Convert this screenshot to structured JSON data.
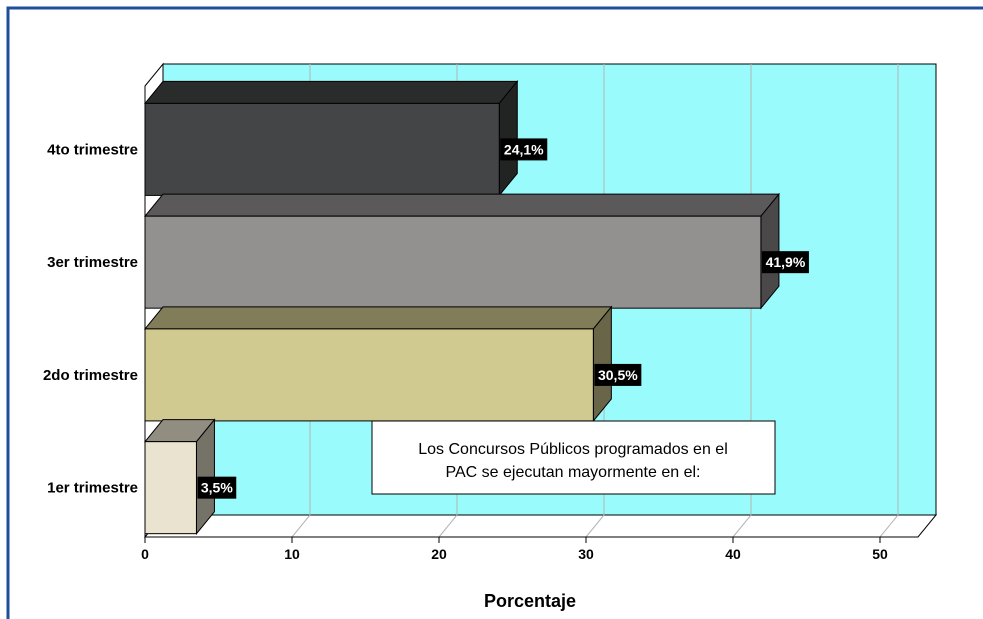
{
  "chart_data": {
    "type": "bar",
    "orientation": "horizontal",
    "categories": [
      "1er trimestre",
      "2do trimestre",
      "3er trimestre",
      "4to trimestre"
    ],
    "values": [
      3.5,
      30.5,
      41.9,
      24.1
    ],
    "value_labels": [
      "3,5%",
      "30,5%",
      "41,9%",
      "24,1%"
    ],
    "title": "",
    "xlabel": "Porcentaje",
    "ylabel": "",
    "xlim": [
      0,
      50
    ],
    "xticks": [
      "0",
      "10",
      "20",
      "30",
      "40",
      "50"
    ],
    "grid": true,
    "legend": "none",
    "annotation": [
      "Los Concursos Públicos programados en el",
      "PAC se ejecutan mayormente en el:"
    ],
    "colors": {
      "plot_background": "#99FBFC",
      "frame_border": "#1F4E9A",
      "bars": [
        "#EAE3CF",
        "#D0CA90",
        "#939090",
        "#434546"
      ],
      "label_background": "#000000",
      "label_text": "#FFFFFF"
    }
  }
}
